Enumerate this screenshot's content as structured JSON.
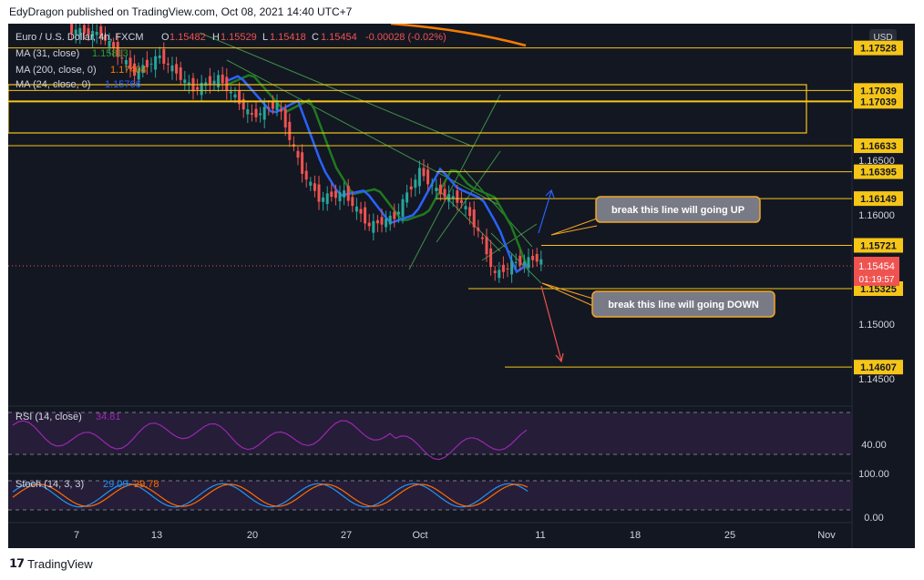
{
  "header": {
    "publisher_line": "EdyDragon published on TradingView.com, Oct 08, 2021 14:40 UTC+7"
  },
  "footer": {
    "brand": "TradingView"
  },
  "currency_badge": "USD",
  "legend": {
    "title": "Euro / U.S. Dollar, 4h, FXCM",
    "o_label": "O",
    "o_value": "1.15482",
    "h_label": "H",
    "h_value": "1.15529",
    "l_label": "L",
    "l_value": "1.15418",
    "c_label": "C",
    "c_value": "1.15454",
    "change": "-0.00028 (-0.02%)",
    "ma1_label": "MA (31, close)",
    "ma1_value": "1.15813",
    "ma2_label": "MA (200, close, 0)",
    "ma2_value": "1.17404",
    "ma3_label": "MA (24, close, 0)",
    "ma3_value": "1.15766"
  },
  "annotations": {
    "up_note": "break this line will going UP",
    "down_note": "break this line will going DOWN"
  },
  "price_badges": {
    "current": "1.15454",
    "countdown": "01:19:57"
  },
  "rsi": {
    "label": "RSI (14, close)",
    "value": "34.81",
    "tick": "40.00"
  },
  "stoch": {
    "label": "Stoch (14, 3, 3)",
    "k_value": "29.09",
    "d_value": "29.78",
    "tick_top": "100.00",
    "tick_bottom": "0.00"
  },
  "colors": {
    "background": "#131722",
    "candle_up": "#26a69a",
    "candle_down": "#ef5350",
    "level_line": "#f5c518",
    "ma31": "#1e7a1e",
    "ma200": "#f57c00",
    "ma24": "#2962ff",
    "rsi": "#9c27b0",
    "stoch_k": "#2196f3",
    "stoch_d": "#ff6d00",
    "channel": "#4caf50"
  },
  "chart_data": {
    "type": "candlestick",
    "instrument": "Euro / U.S. Dollar, 4h, FXCM",
    "x_ticks": [
      "7",
      "13",
      "20",
      "27",
      "Oct",
      "11",
      "18",
      "25",
      "Nov"
    ],
    "y_ticks": [
      1.145,
      1.15,
      1.155,
      1.16,
      1.165
    ],
    "ylim": [
      1.1425,
      1.1775
    ],
    "price_levels": [
      1.17528,
      1.17039,
      1.17039,
      1.16633,
      1.16395,
      1.16149,
      1.15721,
      1.15325,
      1.14607
    ],
    "ohlc": {
      "open": 1.15482,
      "high": 1.15529,
      "low": 1.15418,
      "close": 1.15454,
      "change": -0.00028,
      "change_pct": -0.02
    },
    "series": [
      {
        "name": "MA (31, close)",
        "last": 1.15813
      },
      {
        "name": "MA (200, close, 0)",
        "last": 1.17404
      },
      {
        "name": "MA (24, close, 0)",
        "last": 1.15766
      }
    ],
    "price_path": [
      [
        0,
        1.177
      ],
      [
        8,
        1.1765
      ],
      [
        16,
        1.173
      ],
      [
        22,
        1.1745
      ],
      [
        30,
        1.1715
      ],
      [
        36,
        1.1725
      ],
      [
        44,
        1.169
      ],
      [
        50,
        1.1702
      ],
      [
        56,
        1.164
      ],
      [
        60,
        1.1615
      ],
      [
        66,
        1.162
      ],
      [
        72,
        1.159
      ],
      [
        78,
        1.1598
      ],
      [
        84,
        1.164
      ],
      [
        88,
        1.1622
      ],
      [
        94,
        1.1612
      ],
      [
        98,
        1.1585
      ],
      [
        102,
        1.1545
      ],
      [
        106,
        1.1555
      ],
      [
        112,
        1.156
      ],
      [
        118,
        1.1548
      ],
      [
        124,
        1.15454
      ]
    ],
    "rsi_last": 34.81,
    "rsi_bands": [
      70,
      30
    ],
    "stoch_k_last": 29.09,
    "stoch_d_last": 29.78
  }
}
